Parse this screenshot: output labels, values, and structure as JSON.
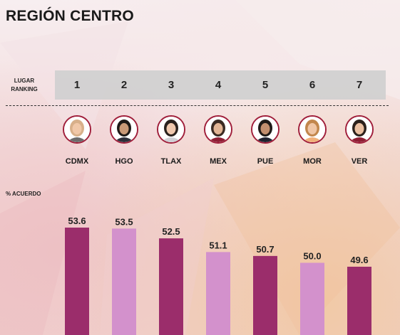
{
  "header": {
    "title": "REGIÓN CENTRO"
  },
  "ranking": {
    "label_line1": "LUGAR",
    "label_line2": "RANKING",
    "positions": [
      "1",
      "2",
      "3",
      "4",
      "5",
      "6",
      "7"
    ]
  },
  "candidates": [
    {
      "state": "CDMX",
      "hair": "#d8b08a",
      "skin": "#f1c8a8",
      "shirt": "#6c6c6c"
    },
    {
      "state": "HGO",
      "hair": "#1e1a18",
      "skin": "#c99a78",
      "shirt": "#2d2f3a"
    },
    {
      "state": "TLAX",
      "hair": "#2a211d",
      "skin": "#efc8ae",
      "shirt": "#cfcfd4"
    },
    {
      "state": "MEX",
      "hair": "#3a2a22",
      "skin": "#e2b595",
      "shirt": "#8e1f34"
    },
    {
      "state": "PUE",
      "hair": "#1f1a18",
      "skin": "#c28f6f",
      "shirt": "#1f2230"
    },
    {
      "state": "MOR",
      "hair": "#c2874d",
      "skin": "#f0c6a6",
      "shirt": "#f0b07a"
    },
    {
      "state": "VER",
      "hair": "#2b211c",
      "skin": "#eac0a2",
      "shirt": "#8e1f34"
    }
  ],
  "colors": {
    "dark_bar": "#9b2d6b",
    "light_bar": "#d391cc",
    "avatar_ring": "#a01f3b"
  },
  "chart_data": {
    "type": "bar",
    "ylabel": "% ACUERDO",
    "categories": [
      "CDMX",
      "HGO",
      "TLAX",
      "MEX",
      "PUE",
      "MOR",
      "VER"
    ],
    "values": [
      53.6,
      53.5,
      52.5,
      51.1,
      50.7,
      50.0,
      49.6
    ],
    "value_labels": [
      "53.6",
      "53.5",
      "52.5",
      "51.1",
      "50.7",
      "50.0",
      "49.6"
    ],
    "bar_colors": [
      "#9b2d6b",
      "#d391cc",
      "#9b2d6b",
      "#d391cc",
      "#9b2d6b",
      "#d391cc",
      "#9b2d6b"
    ]
  }
}
